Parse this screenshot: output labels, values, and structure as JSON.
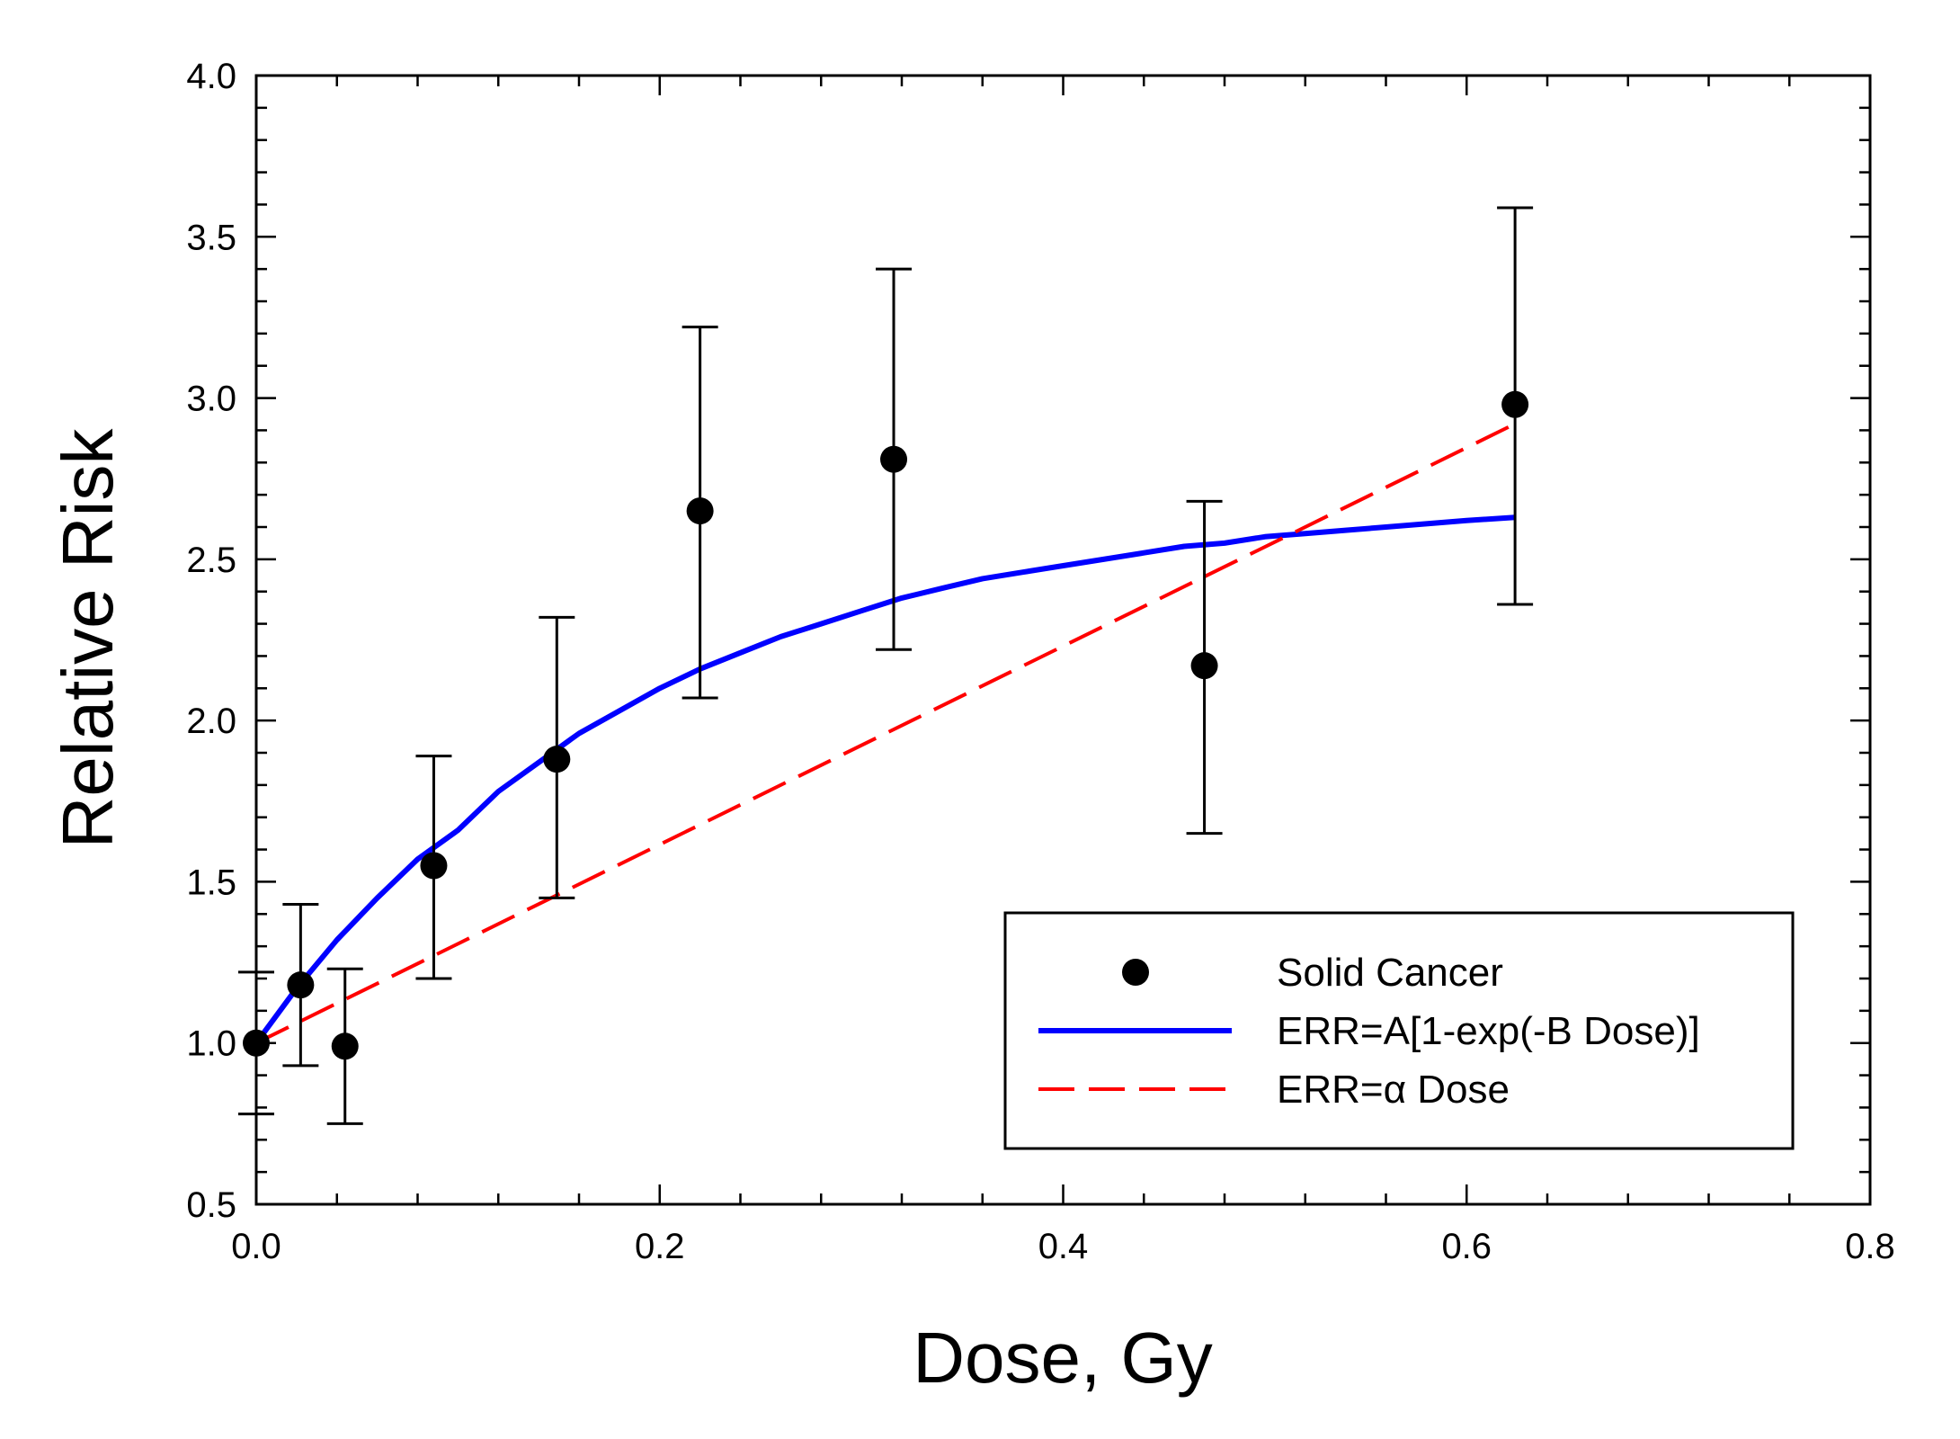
{
  "chart_data": {
    "type": "scatter",
    "title": "",
    "xlabel": "Dose, Gy",
    "ylabel": "Relative Risk",
    "xlim": [
      0.0,
      0.8
    ],
    "ylim": [
      0.5,
      4.0
    ],
    "x_ticks": [
      "0.0",
      "0.2",
      "0.4",
      "0.6",
      "0.8"
    ],
    "y_ticks": [
      "0.5",
      "1.0",
      "1.5",
      "2.0",
      "2.5",
      "3.0",
      "3.5",
      "4.0"
    ],
    "x_tick_values": [
      0.0,
      0.2,
      0.4,
      0.6,
      0.8
    ],
    "y_tick_values": [
      0.5,
      1.0,
      1.5,
      2.0,
      2.5,
      3.0,
      3.5,
      4.0
    ],
    "x_minor_step": 0.04,
    "y_minor_step": 0.1,
    "legend_position": "bottom-right",
    "series": [
      {
        "name": "Solid Cancer",
        "kind": "points",
        "color": "#000000",
        "points": [
          {
            "x": 0.0,
            "y": 1.0,
            "lo": 0.78,
            "hi": 1.22
          },
          {
            "x": 0.022,
            "y": 1.18,
            "lo": 0.93,
            "hi": 1.43
          },
          {
            "x": 0.044,
            "y": 0.99,
            "lo": 0.75,
            "hi": 1.23
          },
          {
            "x": 0.088,
            "y": 1.55,
            "lo": 1.2,
            "hi": 1.89
          },
          {
            "x": 0.149,
            "y": 1.88,
            "lo": 1.45,
            "hi": 2.32
          },
          {
            "x": 0.22,
            "y": 2.65,
            "lo": 2.07,
            "hi": 3.22
          },
          {
            "x": 0.316,
            "y": 2.81,
            "lo": 2.22,
            "hi": 3.4
          },
          {
            "x": 0.47,
            "y": 2.17,
            "lo": 1.65,
            "hi": 2.68
          },
          {
            "x": 0.624,
            "y": 2.98,
            "lo": 2.36,
            "hi": 3.59
          }
        ]
      },
      {
        "name": "ERR=A[1-exp(-B Dose)]",
        "kind": "curve",
        "color": "#0000ff",
        "x": [
          0.0,
          0.02,
          0.04,
          0.06,
          0.08,
          0.1,
          0.12,
          0.14,
          0.16,
          0.18,
          0.2,
          0.22,
          0.24,
          0.26,
          0.28,
          0.3,
          0.32,
          0.34,
          0.36,
          0.38,
          0.4,
          0.42,
          0.44,
          0.46,
          0.48,
          0.5,
          0.52,
          0.54,
          0.56,
          0.58,
          0.6,
          0.624
        ],
        "y": [
          1.0,
          1.17,
          1.32,
          1.45,
          1.57,
          1.66,
          1.78,
          1.87,
          1.96,
          2.03,
          2.1,
          2.16,
          2.21,
          2.26,
          2.3,
          2.34,
          2.38,
          2.41,
          2.44,
          2.46,
          2.48,
          2.5,
          2.52,
          2.54,
          2.55,
          2.57,
          2.58,
          2.59,
          2.6,
          2.61,
          2.62,
          2.63
        ]
      },
      {
        "name": "ERR=α Dose",
        "kind": "line",
        "dashed": true,
        "color": "#ff0000",
        "x": [
          0.0,
          0.624
        ],
        "y": [
          1.0,
          2.92
        ]
      }
    ]
  }
}
